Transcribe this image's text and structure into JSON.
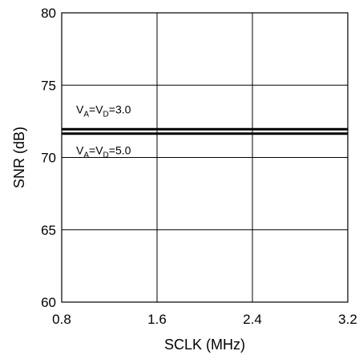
{
  "chart_data": {
    "type": "line",
    "title": "",
    "xlabel": "SCLK (MHz)",
    "ylabel": "SNR (dB)",
    "xlim": [
      0.8,
      3.2
    ],
    "ylim": [
      60,
      80
    ],
    "xticks": [
      "0.8",
      "1.6",
      "2.4",
      "3.2"
    ],
    "yticks": [
      "60",
      "65",
      "70",
      "75",
      "80"
    ],
    "grid": true,
    "series": [
      {
        "x": [
          0.8,
          3.2
        ],
        "y": [
          71.95,
          71.95
        ]
      },
      {
        "x": [
          0.8,
          3.2
        ],
        "y": [
          71.65,
          71.65
        ]
      }
    ],
    "annotations": [
      {
        "parts": [
          [
            "V",
            ""
          ],
          [
            "A",
            "sub"
          ],
          [
            "=V",
            ""
          ],
          [
            "D",
            "sub"
          ],
          [
            "=3.0",
            ""
          ]
        ]
      },
      {
        "parts": [
          [
            "V",
            ""
          ],
          [
            "A",
            "sub"
          ],
          [
            "=V",
            ""
          ],
          [
            "D",
            "sub"
          ],
          [
            "=5.0",
            ""
          ]
        ]
      }
    ],
    "colors": {
      "line": "#000000",
      "grid": "#000000"
    }
  }
}
